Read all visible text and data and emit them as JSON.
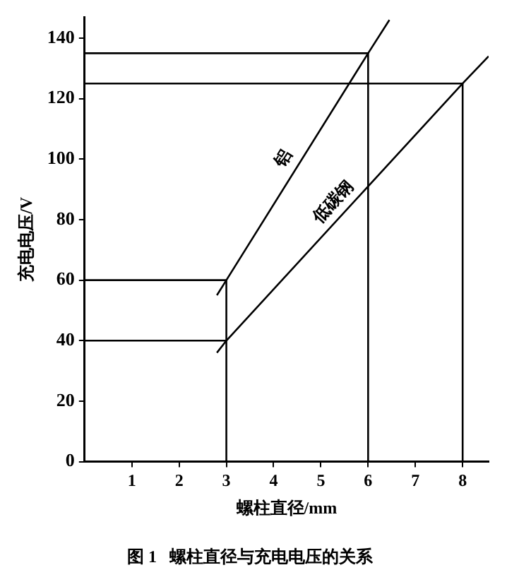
{
  "chart_data": {
    "type": "line",
    "title": "图 1   螺柱直径与充电电压的关系",
    "xlabel": "螺柱直径/mm",
    "ylabel": "充电电压/V",
    "xlim": [
      0,
      8.55
    ],
    "xticks": [
      1,
      2,
      3,
      4,
      5,
      6,
      7,
      8
    ],
    "ylim": [
      0,
      147
    ],
    "yticks": [
      0,
      20,
      40,
      60,
      80,
      100,
      120,
      140
    ],
    "grid": false,
    "legend": false,
    "marker": "none",
    "line_style": "solid",
    "series": [
      {
        "name": "铝",
        "color": "#000000",
        "x": [
          2.8,
          3,
          6,
          6.45
        ],
        "values": [
          55,
          60,
          135,
          146
        ]
      },
      {
        "name": "低碳钢",
        "color": "#000000",
        "x": [
          2.8,
          3,
          8,
          8.55
        ],
        "values": [
          36,
          40,
          125,
          134
        ]
      },
      {
        "color": "#000000",
        "x": [
          0,
          3,
          3
        ],
        "values": [
          60,
          60,
          0
        ]
      },
      {
        "color": "#000000",
        "x": [
          0,
          3
        ],
        "values": [
          40,
          40
        ]
      },
      {
        "color": "#000000",
        "x": [
          0,
          6,
          6
        ],
        "values": [
          135,
          135,
          0
        ]
      },
      {
        "color": "#000000",
        "x": [
          0,
          8,
          8
        ],
        "values": [
          125,
          125,
          0
        ]
      }
    ]
  }
}
